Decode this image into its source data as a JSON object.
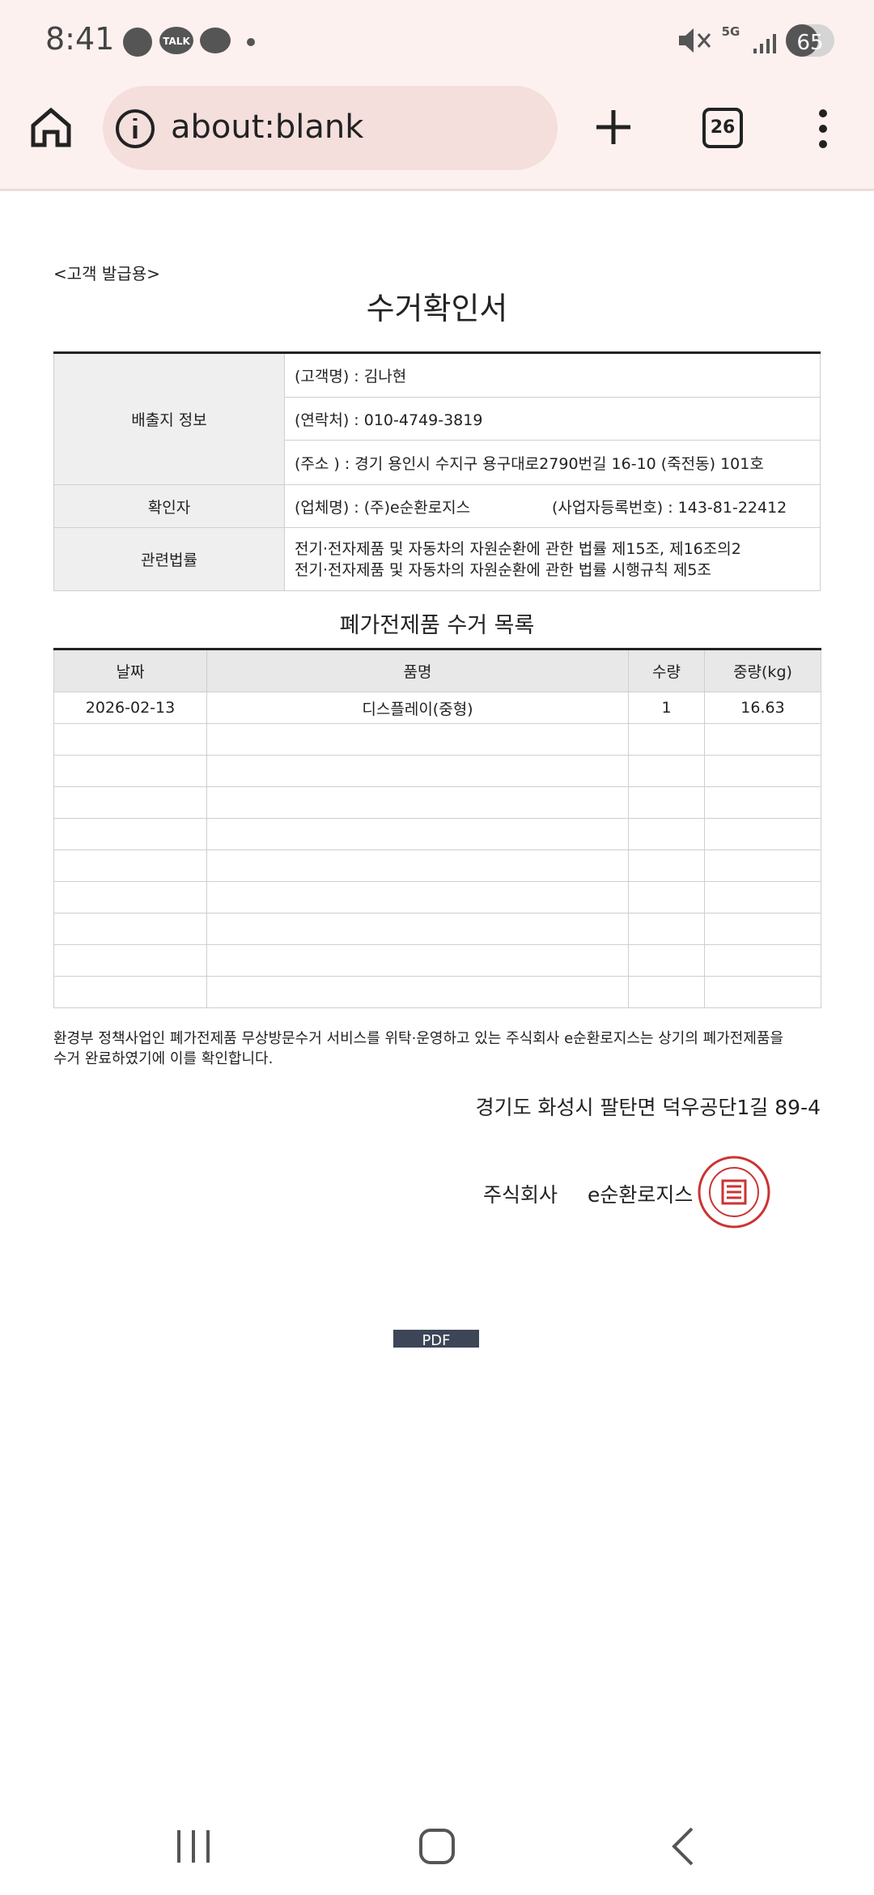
{
  "status_bar": {
    "time": "8:41",
    "talk": "TALK",
    "network": "5G",
    "battery": "65"
  },
  "browser": {
    "address": "about:blank",
    "tab_count": "26"
  },
  "document": {
    "copy_label": "<고객 발급용>",
    "title": "수거확인서",
    "info_table": {
      "rows": [
        {
          "label": "배출지 정보",
          "cells": [
            "(고객명) : 김나현",
            "(연락처) : 010-4749-3819",
            "(주소 ) : 경기 용인시 수지구 용구대로2790번길 16-10 (죽전동) 101호"
          ]
        },
        {
          "label": "확인자",
          "cells": [
            "(업체명) : (주)e순환로지스",
            "(사업자등록번호) : 143-81-22412"
          ]
        },
        {
          "label": "관련법률",
          "cells": [
            "전기·전자제품 및 자동차의 자원순환에 관한 법률 제15조, 제16조의2",
            "전기·전자제품 및 자동차의 자원순환에 관한 법률 시행규칙 제5조"
          ]
        }
      ]
    },
    "list_title": "폐가전제품 수거 목록",
    "list_table": {
      "header": [
        "날짜",
        "품명",
        "수량",
        "중량(kg)"
      ],
      "rows": [
        [
          "2026-02-13",
          "디스플레이(중형)",
          "1",
          "16.63"
        ]
      ]
    },
    "statement": [
      "환경부 정책사업인 폐가전제품 무상방문수거 서비스를 위탁·운영하고 있는 주식회사 e순환로지스는 상기의 폐가전제품을",
      "수거 완료하였기에 이를 확인합니다."
    ],
    "address": "경기도 화성시 팔탄면 덕우공단1길 89-4",
    "company_type": "주식회사",
    "company_name": "e순환로지스",
    "pdf_button": "PDF"
  }
}
